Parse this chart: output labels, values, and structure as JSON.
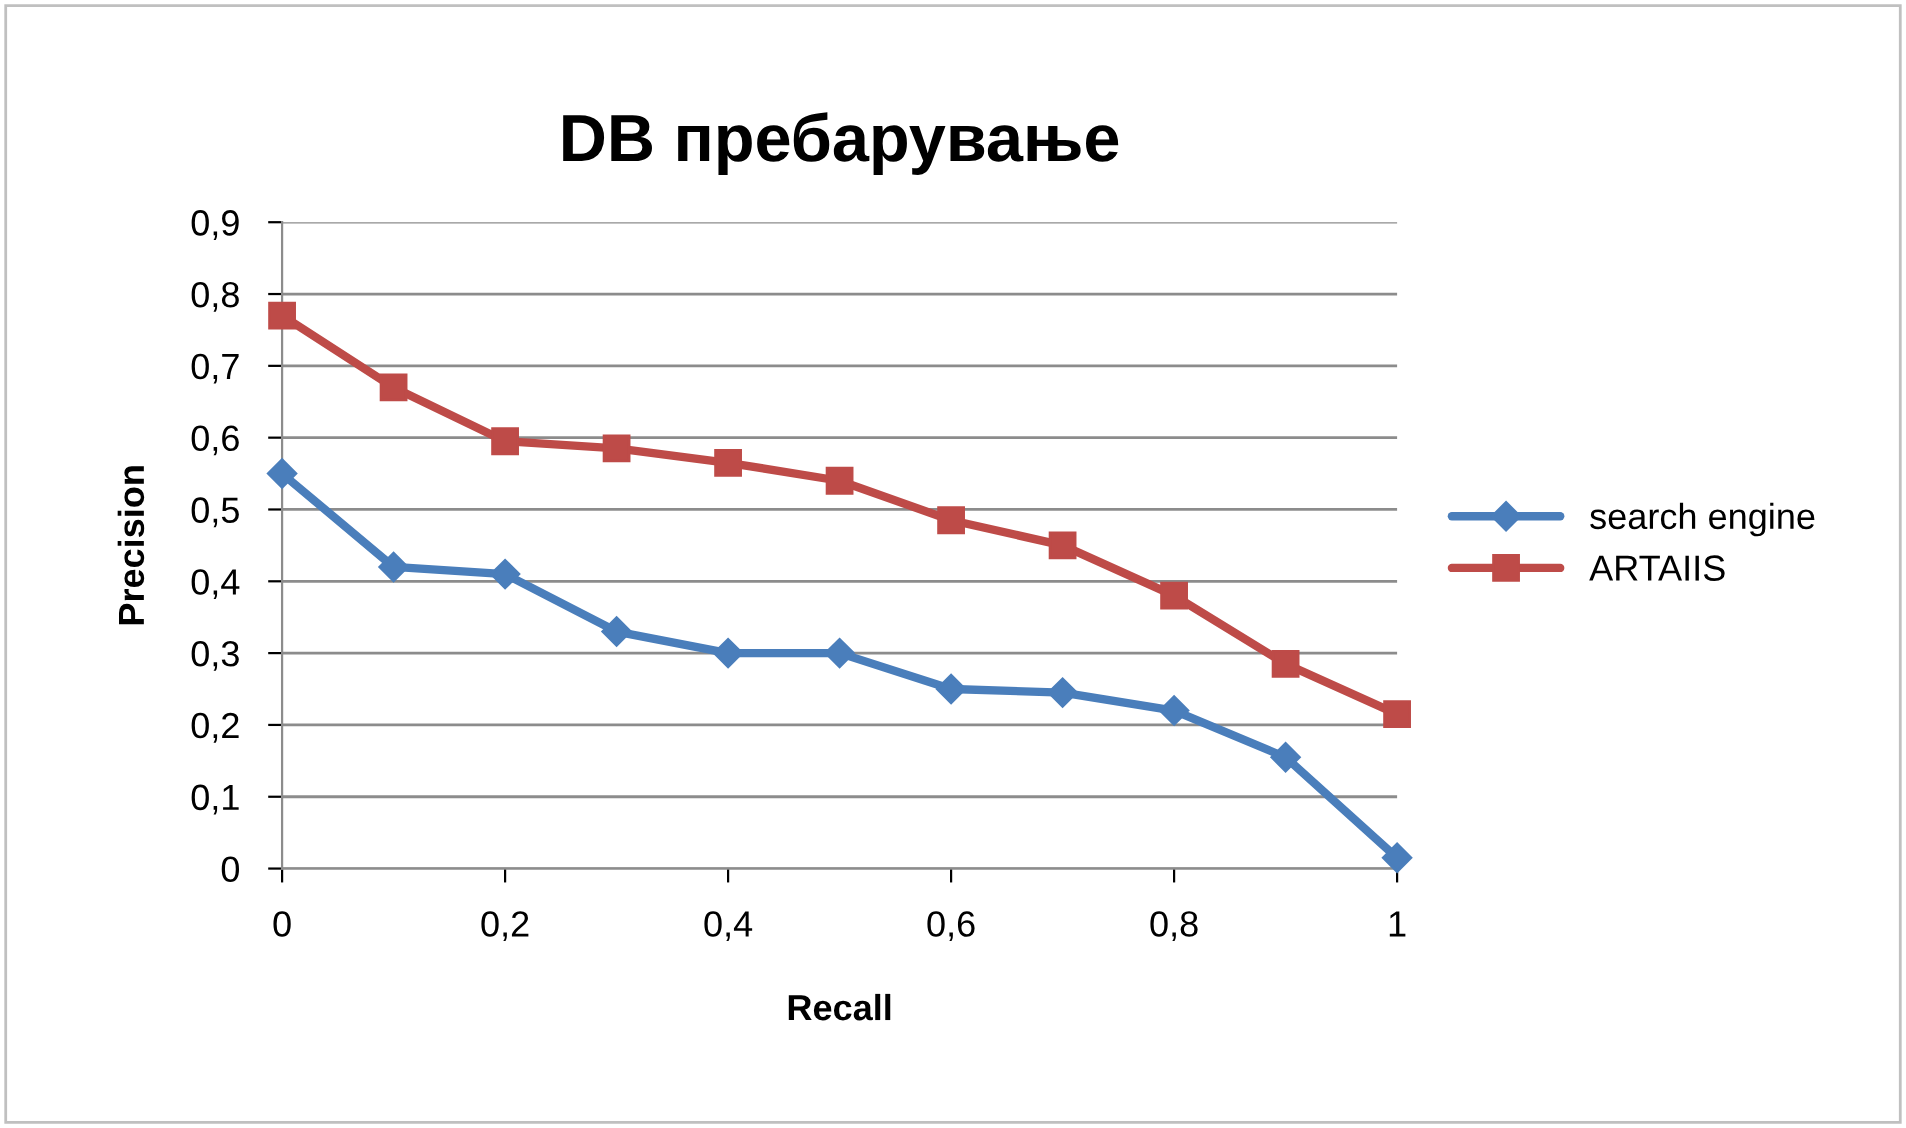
{
  "chart_data": {
    "type": "line",
    "title": "DB пребарување",
    "xlabel": "Recall",
    "ylabel": "Precision",
    "x": [
      0,
      0.1,
      0.2,
      0.3,
      0.4,
      0.5,
      0.6,
      0.7,
      0.8,
      0.9,
      1
    ],
    "series": [
      {
        "name": "search engine",
        "color": "#4a7ebb",
        "marker": "diamond",
        "values": [
          0.55,
          0.42,
          0.41,
          0.33,
          0.3,
          0.3,
          0.25,
          0.245,
          0.22,
          0.155,
          0.015
        ]
      },
      {
        "name": "ARTAIIS",
        "color": "#be4b48",
        "marker": "square",
        "values": [
          0.77,
          0.67,
          0.595,
          0.585,
          0.565,
          0.54,
          0.485,
          0.45,
          0.38,
          0.285,
          0.215
        ]
      }
    ],
    "xlim": [
      0,
      1
    ],
    "ylim": [
      0,
      0.9
    ],
    "xticks": [
      0,
      {
        "value": 0.2,
        "label": "0,2"
      },
      {
        "value": 0.4,
        "label": "0,4"
      },
      {
        "value": 0.6,
        "label": "0,6"
      },
      {
        "value": 0.8,
        "label": "0,8"
      },
      1
    ],
    "yticks": [
      0,
      {
        "value": 0.1,
        "label": "0,1"
      },
      {
        "value": 0.2,
        "label": "0,2"
      },
      {
        "value": 0.3,
        "label": "0,3"
      },
      {
        "value": 0.4,
        "label": "0,4"
      },
      {
        "value": 0.5,
        "label": "0,5"
      },
      {
        "value": 0.6,
        "label": "0,6"
      },
      {
        "value": 0.7,
        "label": "0,7"
      },
      {
        "value": 0.8,
        "label": "0,8"
      },
      {
        "value": 0.9,
        "label": "0,9"
      }
    ],
    "grid": "y",
    "legend": "right",
    "line_style": "solid"
  }
}
